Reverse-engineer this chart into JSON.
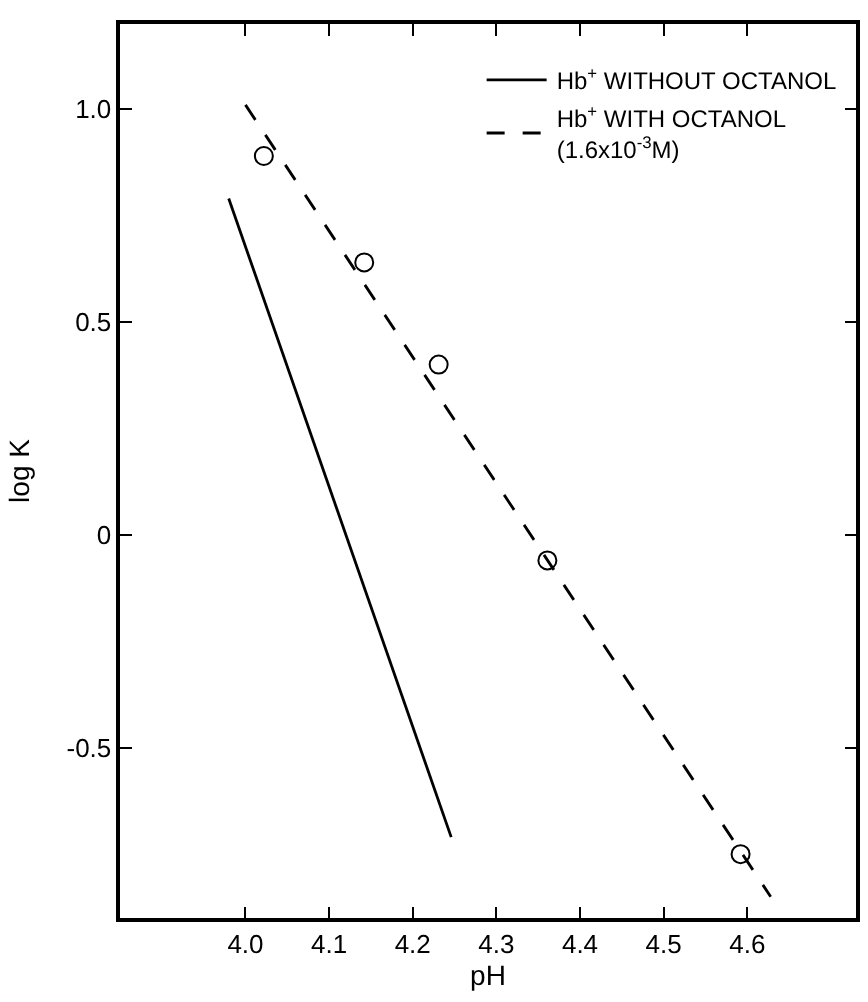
{
  "chart_data": {
    "type": "scatter",
    "xlabel": "pH",
    "ylabel": "log K",
    "xlim": [
      3.85,
      4.73
    ],
    "ylim": [
      -0.9,
      1.2
    ],
    "xticks": [
      {
        "value": 4.0,
        "label": "4.0"
      },
      4.1,
      4.2,
      4.3,
      4.4,
      4.5,
      4.6
    ],
    "yticks": [
      {
        "value": -0.5,
        "label": "-0.5"
      },
      0,
      {
        "value": 0.5,
        "label": "0.5"
      },
      {
        "value": 1.0,
        "label": "1.0"
      }
    ],
    "legend": "top right",
    "series": [
      {
        "name": "Hb$^{+}$ WITHOUT OCTANOL",
        "type": "line",
        "color": "#000000",
        "line_style": "solid",
        "marker": "none",
        "x": [
          3.98,
          4.246
        ],
        "values": [
          0.79,
          -0.71
        ]
      },
      {
        "name": "Hb$^{+}$ WITH OCTANOL\n(1.6x10$^{-3}$M)",
        "type": "line",
        "color": "#000000",
        "line_style": "dashed",
        "marker": "none",
        "x": [
          4.0,
          4.628
        ],
        "values": [
          1.01,
          -0.85
        ]
      },
      {
        "color": "#000000",
        "marker": "circle",
        "x": [
          4.022,
          4.142,
          4.231,
          4.361,
          4.592
        ],
        "values": [
          0.89,
          0.64,
          0.4,
          -0.06,
          -0.75
        ]
      }
    ]
  }
}
